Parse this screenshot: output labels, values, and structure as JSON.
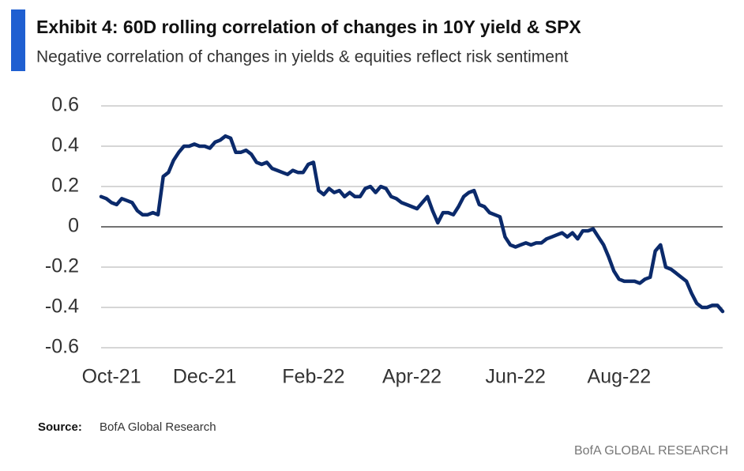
{
  "chart_data": {
    "type": "line",
    "title": "Exhibit 4: 60D rolling correlation of changes in 10Y  yield & SPX",
    "subtitle": "Negative correlation of changes in yields & equities reflect risk sentiment",
    "source_label": "Source:",
    "source": "BofA Global Research",
    "branding": "BofA GLOBAL RESEARCH",
    "color": "#0b2a6b",
    "grid": true,
    "ylim": [
      -0.6,
      0.6
    ],
    "yticks": [
      0.6,
      0.4,
      0.2,
      0,
      -0.2,
      -0.4,
      -0.6
    ],
    "categories": [
      null,
      null,
      "Oct-21",
      null,
      null,
      null,
      null,
      null,
      null,
      null,
      null,
      null,
      null,
      null,
      null,
      null,
      null,
      null,
      null,
      null,
      "Dec-21",
      null,
      null,
      null,
      null,
      null,
      null,
      null,
      null,
      null,
      null,
      null,
      null,
      null,
      null,
      null,
      null,
      null,
      null,
      null,
      null,
      "Feb-22",
      null,
      null,
      null,
      null,
      null,
      null,
      null,
      null,
      null,
      null,
      null,
      null,
      null,
      null,
      null,
      null,
      null,
      null,
      "Apr-22",
      null,
      null,
      null,
      null,
      null,
      null,
      null,
      null,
      null,
      null,
      null,
      null,
      null,
      null,
      null,
      null,
      null,
      null,
      null,
      "Jun-22",
      null,
      null,
      null,
      null,
      null,
      null,
      null,
      null,
      null,
      null,
      null,
      null,
      null,
      null,
      null,
      null,
      null,
      null,
      null,
      "Aug-22",
      null,
      null,
      null,
      null,
      null,
      null,
      null,
      null,
      null,
      null,
      null,
      null,
      null,
      null,
      null,
      null,
      null,
      null,
      null,
      null
    ],
    "values": [
      0.15,
      0.14,
      0.12,
      0.11,
      0.14,
      0.13,
      0.12,
      0.08,
      0.06,
      0.06,
      0.07,
      0.06,
      0.25,
      0.27,
      0.33,
      0.37,
      0.4,
      0.4,
      0.41,
      0.4,
      0.4,
      0.39,
      0.42,
      0.43,
      0.45,
      0.44,
      0.37,
      0.37,
      0.38,
      0.36,
      0.32,
      0.31,
      0.32,
      0.29,
      0.28,
      0.27,
      0.26,
      0.28,
      0.27,
      0.27,
      0.31,
      0.32,
      0.18,
      0.16,
      0.19,
      0.17,
      0.18,
      0.15,
      0.17,
      0.15,
      0.15,
      0.19,
      0.2,
      0.17,
      0.2,
      0.19,
      0.15,
      0.14,
      0.12,
      0.11,
      0.1,
      0.09,
      0.12,
      0.15,
      0.08,
      0.02,
      0.07,
      0.07,
      0.06,
      0.1,
      0.15,
      0.17,
      0.18,
      0.11,
      0.1,
      0.07,
      0.06,
      0.05,
      -0.05,
      -0.09,
      -0.1,
      -0.09,
      -0.08,
      -0.09,
      -0.08,
      -0.08,
      -0.06,
      -0.05,
      -0.04,
      -0.03,
      -0.05,
      -0.03,
      -0.06,
      -0.02,
      -0.02,
      -0.01,
      -0.05,
      -0.09,
      -0.15,
      -0.22,
      -0.26,
      -0.27,
      -0.27,
      -0.27,
      -0.28,
      -0.26,
      -0.25,
      -0.12,
      -0.09,
      -0.2,
      -0.21,
      -0.23,
      -0.25,
      -0.27,
      -0.33,
      -0.38,
      -0.4,
      -0.4,
      -0.39,
      -0.39,
      -0.42
    ]
  }
}
